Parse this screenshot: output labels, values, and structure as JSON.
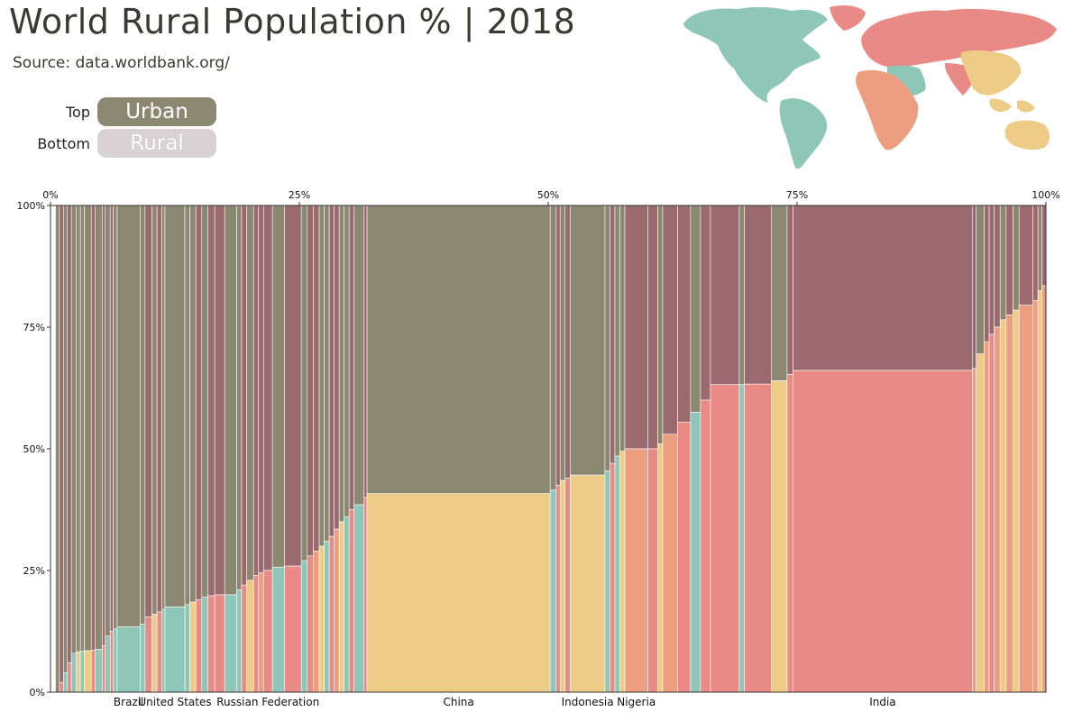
{
  "header": {
    "title": "World Rural Population % | 2018",
    "source": "Source: data.worldbank.org/"
  },
  "legend": {
    "top_label": "Top",
    "top_value": "Urban",
    "bottom_label": "Bottom",
    "bottom_value": "Rural"
  },
  "colors": {
    "urban": "#8a8870",
    "urban_alt": "#9a6a6e",
    "americas": "#8ec7b8",
    "asia_east": "#eccc86",
    "asia_south": "#e98a86",
    "africa": "#ee9e80",
    "europe": "#e98a86",
    "background": "#ffffff"
  },
  "chart_data": {
    "type": "marimekko",
    "x_ticks": [
      "0%",
      "25%",
      "50%",
      "75%",
      "100%"
    ],
    "y_ticks": [
      "0%",
      "25%",
      "50%",
      "75%",
      "100%"
    ],
    "xlim": [
      0,
      100
    ],
    "ylim": [
      0,
      100
    ],
    "categories": [
      "Brazil",
      "United States",
      "Russian Federation",
      "China",
      "Indonesia",
      "Nigeria",
      "India"
    ],
    "bars": [
      {
        "x0": 0.5,
        "x1": 0.9,
        "rural": 0,
        "region": "americas"
      },
      {
        "x0": 0.9,
        "x1": 1.3,
        "rural": 2,
        "region": "europe"
      },
      {
        "x0": 1.3,
        "x1": 1.7,
        "rural": 4,
        "region": "americas"
      },
      {
        "x0": 1.7,
        "x1": 2.1,
        "rural": 6,
        "region": "europe"
      },
      {
        "x0": 2.1,
        "x1": 2.6,
        "rural": 8,
        "region": "americas"
      },
      {
        "x0": 2.6,
        "x1": 3.0,
        "rural": 8.3,
        "region": "asia_east"
      },
      {
        "x0": 3.0,
        "x1": 3.4,
        "rural": 8.4,
        "region": "americas"
      },
      {
        "x0": 3.4,
        "x1": 4.1,
        "rural": 8.5,
        "region": "asia_east"
      },
      {
        "x0": 4.1,
        "x1": 4.5,
        "rural": 8.6,
        "region": "europe"
      },
      {
        "x0": 4.5,
        "x1": 5.2,
        "rural": 8.8,
        "region": "americas"
      },
      {
        "x0": 5.2,
        "x1": 5.5,
        "rural": 9.5,
        "region": "europe"
      },
      {
        "x0": 5.5,
        "x1": 6.0,
        "rural": 11.5,
        "region": "americas"
      },
      {
        "x0": 6.0,
        "x1": 6.3,
        "rural": 12.5,
        "region": "europe"
      },
      {
        "x0": 6.3,
        "x1": 6.7,
        "rural": 13.0,
        "region": "americas"
      },
      {
        "x0": 6.7,
        "x1": 9.0,
        "rural": 13.4,
        "region": "americas",
        "label": "Brazil"
      },
      {
        "x0": 9.0,
        "x1": 9.5,
        "rural": 14,
        "region": "americas"
      },
      {
        "x0": 9.5,
        "x1": 10.2,
        "rural": 15.5,
        "region": "europe"
      },
      {
        "x0": 10.2,
        "x1": 10.7,
        "rural": 16,
        "region": "asia_east"
      },
      {
        "x0": 10.7,
        "x1": 11.2,
        "rural": 16.5,
        "region": "europe"
      },
      {
        "x0": 11.2,
        "x1": 11.5,
        "rural": 17,
        "region": "americas"
      },
      {
        "x0": 11.5,
        "x1": 13.5,
        "rural": 17.5,
        "region": "americas",
        "label": "United States"
      },
      {
        "x0": 13.5,
        "x1": 14.0,
        "rural": 18,
        "region": "americas"
      },
      {
        "x0": 14.0,
        "x1": 14.6,
        "rural": 18.5,
        "region": "asia_east"
      },
      {
        "x0": 14.6,
        "x1": 15.2,
        "rural": 19,
        "region": "europe"
      },
      {
        "x0": 15.2,
        "x1": 15.8,
        "rural": 19.5,
        "region": "americas"
      },
      {
        "x0": 15.8,
        "x1": 16.5,
        "rural": 19.8,
        "region": "europe"
      },
      {
        "x0": 16.5,
        "x1": 17.5,
        "rural": 20,
        "region": "europe"
      },
      {
        "x0": 17.5,
        "x1": 18.7,
        "rural": 20,
        "region": "americas"
      },
      {
        "x0": 18.7,
        "x1": 19.2,
        "rural": 21,
        "region": "americas"
      },
      {
        "x0": 19.2,
        "x1": 19.7,
        "rural": 22,
        "region": "europe"
      },
      {
        "x0": 19.7,
        "x1": 20.4,
        "rural": 23,
        "region": "asia_east"
      },
      {
        "x0": 20.4,
        "x1": 20.9,
        "rural": 24,
        "region": "europe"
      },
      {
        "x0": 20.9,
        "x1": 21.4,
        "rural": 24.5,
        "region": "africa"
      },
      {
        "x0": 21.4,
        "x1": 22.3,
        "rural": 25,
        "region": "europe",
        "label": "Russian Federation"
      },
      {
        "x0": 22.3,
        "x1": 23.5,
        "rural": 25.7,
        "region": "americas"
      },
      {
        "x0": 23.5,
        "x1": 25.2,
        "rural": 25.9,
        "region": "europe"
      },
      {
        "x0": 25.2,
        "x1": 25.8,
        "rural": 27,
        "region": "americas"
      },
      {
        "x0": 25.8,
        "x1": 26.4,
        "rural": 28,
        "region": "europe"
      },
      {
        "x0": 26.4,
        "x1": 27.0,
        "rural": 29,
        "region": "africa"
      },
      {
        "x0": 27.0,
        "x1": 27.5,
        "rural": 30,
        "region": "asia_east"
      },
      {
        "x0": 27.5,
        "x1": 28.0,
        "rural": 31,
        "region": "americas"
      },
      {
        "x0": 28.0,
        "x1": 28.5,
        "rural": 32,
        "region": "europe"
      },
      {
        "x0": 28.5,
        "x1": 29.0,
        "rural": 33.5,
        "region": "africa"
      },
      {
        "x0": 29.0,
        "x1": 29.5,
        "rural": 35,
        "region": "asia_east"
      },
      {
        "x0": 29.5,
        "x1": 30.0,
        "rural": 36,
        "region": "americas"
      },
      {
        "x0": 30.0,
        "x1": 30.5,
        "rural": 37.5,
        "region": "europe"
      },
      {
        "x0": 30.5,
        "x1": 31.5,
        "rural": 38.5,
        "region": "americas"
      },
      {
        "x0": 31.5,
        "x1": 31.8,
        "rural": 40,
        "region": "europe"
      },
      {
        "x0": 31.8,
        "x1": 50.2,
        "rural": 40.8,
        "region": "asia_east",
        "label": "China"
      },
      {
        "x0": 50.2,
        "x1": 50.8,
        "rural": 41.5,
        "region": "americas"
      },
      {
        "x0": 50.8,
        "x1": 51.2,
        "rural": 42.5,
        "region": "europe"
      },
      {
        "x0": 51.2,
        "x1": 51.7,
        "rural": 43.5,
        "region": "asia_east"
      },
      {
        "x0": 51.7,
        "x1": 52.2,
        "rural": 44,
        "region": "europe"
      },
      {
        "x0": 52.2,
        "x1": 55.7,
        "rural": 44.6,
        "region": "asia_east",
        "label": "Indonesia"
      },
      {
        "x0": 55.7,
        "x1": 56.2,
        "rural": 45.5,
        "region": "americas"
      },
      {
        "x0": 56.2,
        "x1": 56.7,
        "rural": 47,
        "region": "europe"
      },
      {
        "x0": 56.7,
        "x1": 57.2,
        "rural": 48.5,
        "region": "americas"
      },
      {
        "x0": 57.2,
        "x1": 57.7,
        "rural": 49.5,
        "region": "asia_east"
      },
      {
        "x0": 57.7,
        "x1": 60.0,
        "rural": 50,
        "region": "africa",
        "label": "Nigeria"
      },
      {
        "x0": 60.0,
        "x1": 61.0,
        "rural": 50,
        "region": "europe"
      },
      {
        "x0": 61.0,
        "x1": 61.5,
        "rural": 51,
        "region": "asia_east"
      },
      {
        "x0": 61.5,
        "x1": 63.0,
        "rural": 53,
        "region": "africa"
      },
      {
        "x0": 63.0,
        "x1": 64.3,
        "rural": 55.5,
        "region": "europe"
      },
      {
        "x0": 64.3,
        "x1": 65.3,
        "rural": 57.5,
        "region": "americas"
      },
      {
        "x0": 65.3,
        "x1": 66.3,
        "rural": 60,
        "region": "europe"
      },
      {
        "x0": 66.3,
        "x1": 69.2,
        "rural": 63.2,
        "region": "europe"
      },
      {
        "x0": 69.2,
        "x1": 69.7,
        "rural": 63.2,
        "region": "americas"
      },
      {
        "x0": 69.7,
        "x1": 72.4,
        "rural": 63.3,
        "region": "europe"
      },
      {
        "x0": 72.4,
        "x1": 74.0,
        "rural": 64,
        "region": "asia_east"
      },
      {
        "x0": 74.0,
        "x1": 74.6,
        "rural": 65.3,
        "region": "europe"
      },
      {
        "x0": 74.6,
        "x1": 92.6,
        "rural": 66.1,
        "region": "europe",
        "label": "India"
      },
      {
        "x0": 92.6,
        "x1": 93.0,
        "rural": 66.5,
        "region": "africa"
      },
      {
        "x0": 93.0,
        "x1": 93.8,
        "rural": 69.5,
        "region": "asia_east"
      },
      {
        "x0": 93.8,
        "x1": 94.3,
        "rural": 72,
        "region": "africa"
      },
      {
        "x0": 94.3,
        "x1": 94.8,
        "rural": 73.5,
        "region": "europe"
      },
      {
        "x0": 94.8,
        "x1": 95.4,
        "rural": 75,
        "region": "africa"
      },
      {
        "x0": 95.4,
        "x1": 96.0,
        "rural": 76.5,
        "region": "asia_east"
      },
      {
        "x0": 96.0,
        "x1": 96.7,
        "rural": 77.5,
        "region": "africa"
      },
      {
        "x0": 96.7,
        "x1": 97.3,
        "rural": 78.5,
        "region": "asia_east"
      },
      {
        "x0": 97.3,
        "x1": 98.7,
        "rural": 79.5,
        "region": "africa"
      },
      {
        "x0": 98.7,
        "x1": 99.2,
        "rural": 80.5,
        "region": "africa"
      },
      {
        "x0": 99.2,
        "x1": 99.6,
        "rural": 82.5,
        "region": "asia_east"
      },
      {
        "x0": 99.6,
        "x1": 100,
        "rural": 83.5,
        "region": "africa"
      }
    ]
  }
}
